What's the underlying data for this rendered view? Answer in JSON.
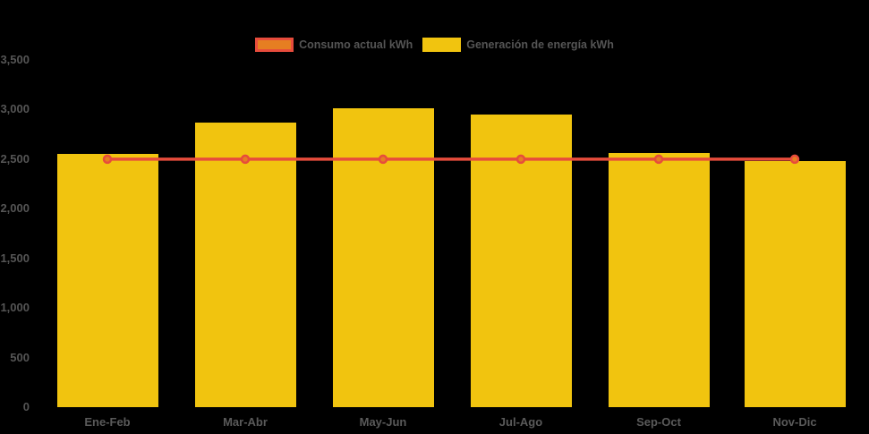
{
  "app": {
    "background": "#000000"
  },
  "legend": {
    "items": [
      {
        "id": "consumo",
        "label": "Consumo actual kWh",
        "swatch_fill": "#e67e22",
        "swatch_border": "#e74c3c"
      },
      {
        "id": "generacion",
        "label": "Generación de energía kWh",
        "swatch_fill": "#f1c40f",
        "swatch_border": "#f1c40f"
      }
    ],
    "text_color": "#555555"
  },
  "chart_data": {
    "type": "bar",
    "title": "",
    "xlabel": "",
    "ylabel": "",
    "categories": [
      "Ene-Feb",
      "Mar-Abr",
      "May-Jun",
      "Jul-Ago",
      "Sep-Oct",
      "Nov-Dic"
    ],
    "series": [
      {
        "name": "Consumo actual kWh",
        "type": "line",
        "color": "#e74c3c",
        "marker_fill": "#e67e22",
        "marker_border": "#e74c3c",
        "values": [
          2500,
          2500,
          2500,
          2500,
          2500,
          2500
        ]
      },
      {
        "name": "Generación de energía kWh",
        "type": "bar",
        "color": "#f1c40f",
        "values": [
          2550,
          2870,
          3010,
          2950,
          2560,
          2480
        ]
      }
    ],
    "ylim": [
      0,
      3500
    ],
    "ytick_step": 500,
    "ytick_labels": [
      "3,500",
      "3,000",
      "2,500",
      "2,000",
      "1,500",
      "1,000",
      "500",
      "0"
    ],
    "axis_text_color": "#555555",
    "grid": false,
    "legend_position": "top",
    "background": "#000000"
  }
}
